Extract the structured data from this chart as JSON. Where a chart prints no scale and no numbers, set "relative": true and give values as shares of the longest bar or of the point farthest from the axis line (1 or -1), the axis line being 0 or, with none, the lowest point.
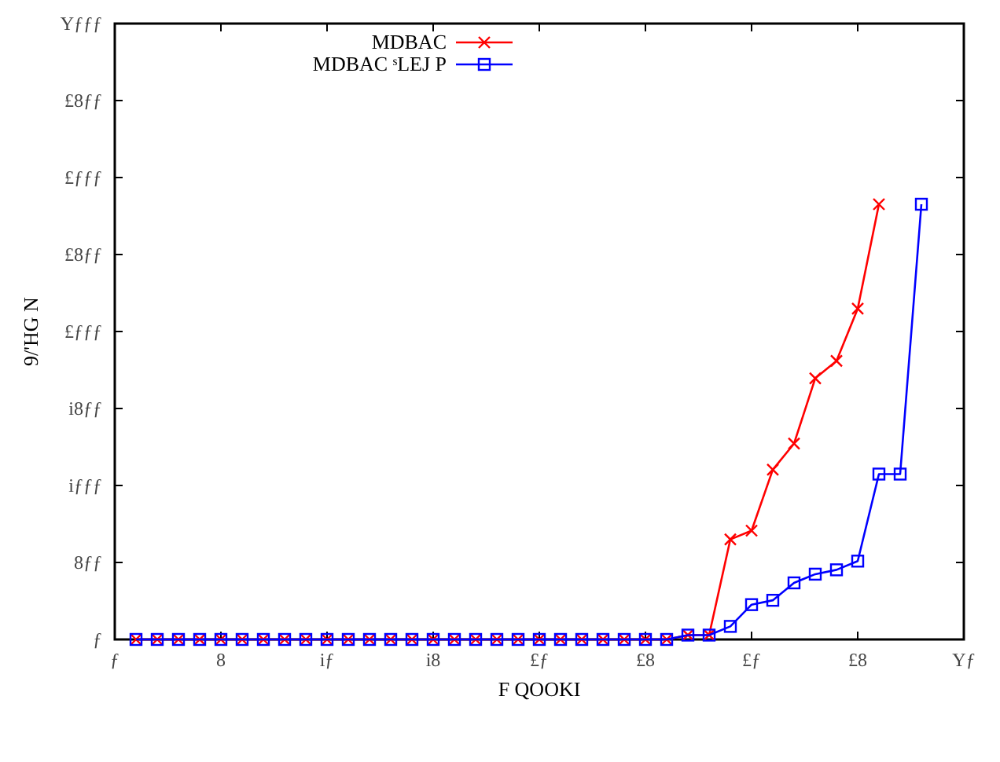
{
  "chart_data": {
    "type": "line",
    "xlabel": "F QOOKI",
    "ylabel": "9/'HG N",
    "relative": true,
    "categories": [
      "ƒ",
      null,
      null,
      null,
      null,
      "8",
      null,
      null,
      null,
      null,
      "iƒ",
      null,
      null,
      null,
      null,
      "i8",
      null,
      null,
      null,
      null,
      "£ƒ",
      null,
      null,
      null,
      null,
      "£8",
      null,
      null,
      null,
      null,
      "£ƒ",
      null,
      null,
      null,
      null,
      "£8",
      null,
      null,
      null,
      null,
      "Yƒ"
    ],
    "annotations": [
      "ƒ",
      "8ƒƒ",
      "iƒƒƒ",
      "i8ƒƒ",
      "£ƒƒƒ",
      "£8ƒƒ",
      "£ƒƒƒ",
      "£8ƒƒ",
      "Yƒƒƒ"
    ],
    "grid": false,
    "legend": "top",
    "series": [
      {
        "name": "MDBAC",
        "color": "#ff0000",
        "marker": "cross",
        "values": [
          null,
          0,
          0,
          0,
          0,
          0,
          0,
          0,
          0,
          0,
          0,
          0,
          0,
          0,
          0,
          0,
          0,
          0,
          0,
          0,
          0,
          0,
          0,
          0,
          0,
          0,
          0,
          0.01,
          0.01,
          0.23,
          0.25,
          0.39,
          0.45,
          0.6,
          0.64,
          0.76,
          1,
          null,
          null,
          null,
          null
        ]
      },
      {
        "name": "MDBAC ˢLEJ P",
        "color": "#0000ff",
        "marker": "square",
        "values": [
          null,
          0,
          0,
          0,
          0,
          0,
          0,
          0,
          0,
          0,
          0,
          0,
          0,
          0,
          0,
          0,
          0,
          0,
          0,
          0,
          0,
          0,
          0,
          0,
          0,
          0,
          0,
          0.01,
          0.01,
          0.03,
          0.08,
          0.09,
          0.13,
          0.15,
          0.16,
          0.18,
          0.38,
          0.38,
          1,
          null,
          null
        ]
      }
    ]
  }
}
